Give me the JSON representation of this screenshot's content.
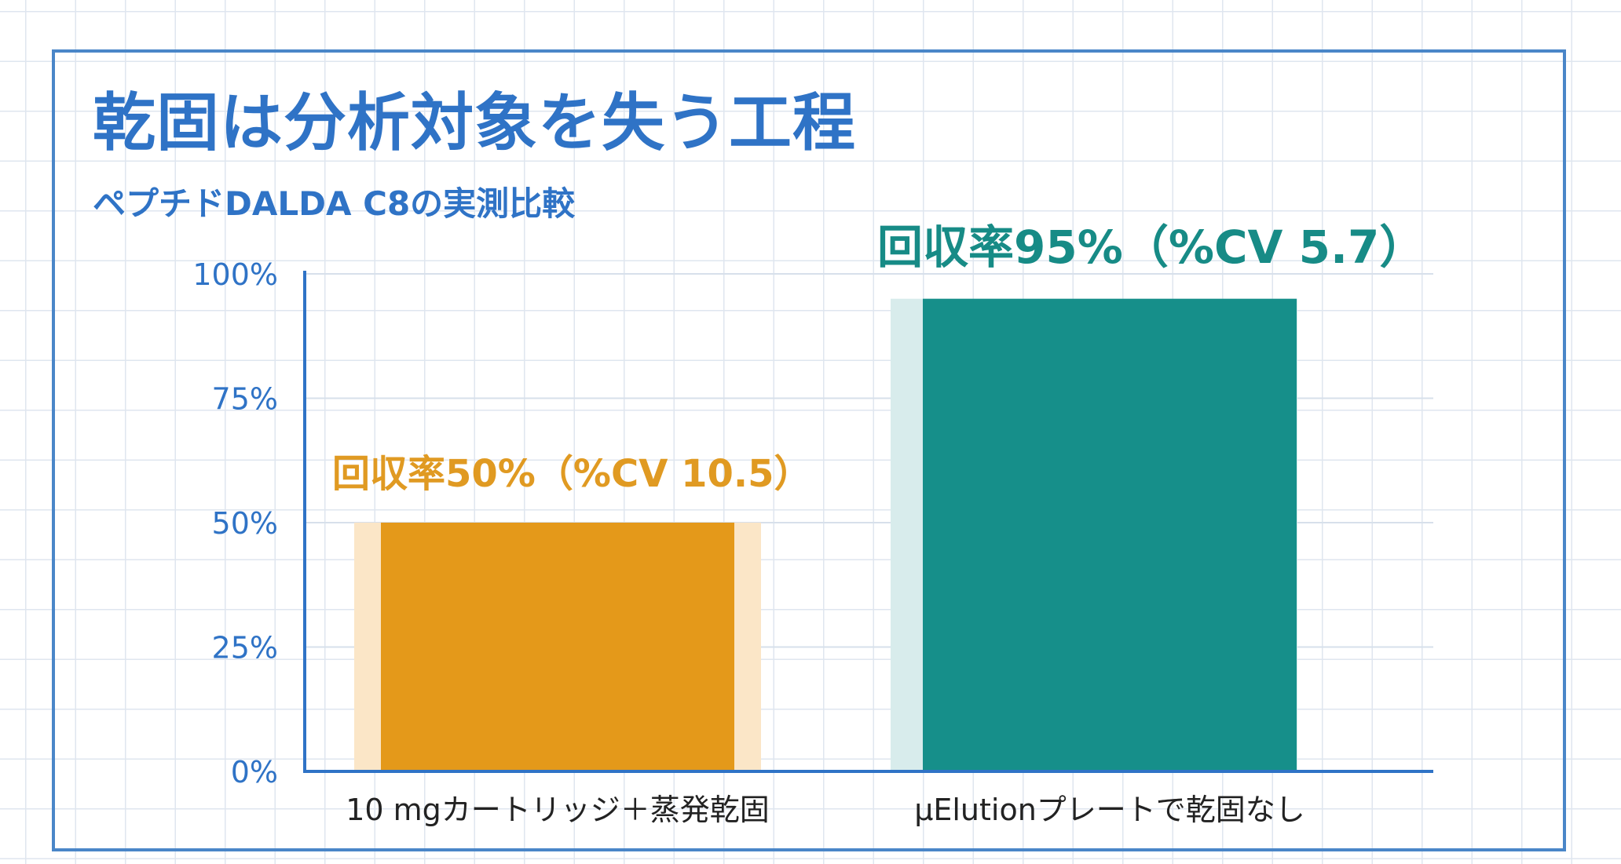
{
  "title": "乾固は分析対象を失う工程",
  "subtitle": "ペプチドDALDA C8の実測比較",
  "chart_data": {
    "type": "bar",
    "categories": [
      "10 mgカートリッジ＋蒸発乾固",
      "μElutionプレートで乾固なし"
    ],
    "values": [
      50,
      95
    ],
    "error_cv": [
      10.5,
      5.7
    ],
    "data_labels": [
      "回収率50%（%CV 10.5）",
      "回収率95%（%CV 5.7）"
    ],
    "ylim": [
      0,
      100
    ],
    "yticks": [
      {
        "value": 0,
        "label": "0%"
      },
      {
        "value": 25,
        "label": "25%"
      },
      {
        "value": 50,
        "label": "50%"
      },
      {
        "value": 75,
        "label": "75%"
      },
      {
        "value": 100,
        "label": "100%"
      }
    ],
    "colors": [
      "#e4991a",
      "#168f8a"
    ],
    "halo_colors": [
      "#fbe6c7",
      "#d8ecec"
    ],
    "label_colors": [
      "#e09a22",
      "#178b86"
    ],
    "axis_color": "#2f73c6",
    "grid": true,
    "legend": "none"
  }
}
